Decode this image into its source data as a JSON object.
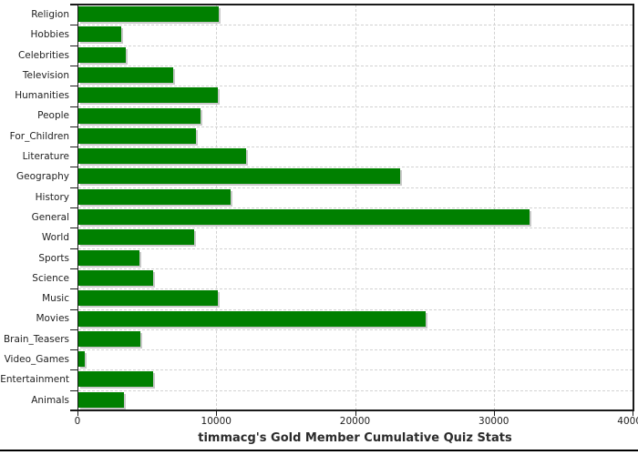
{
  "chart_data": {
    "type": "bar",
    "orientation": "horizontal",
    "title": "timmacg's Gold Member Cumulative Quiz Stats",
    "categories": [
      "Religion",
      "Hobbies",
      "Celebrities",
      "Television",
      "Humanities",
      "People",
      "For_Children",
      "Literature",
      "Geography",
      "History",
      "General",
      "World",
      "Sports",
      "Science",
      "Music",
      "Movies",
      "Brain_Teasers",
      "Video_Games",
      "Entertainment",
      "Animals"
    ],
    "values": [
      10120,
      3080,
      3390,
      6820,
      10070,
      8790,
      8500,
      12060,
      23210,
      10940,
      32500,
      8340,
      4410,
      5360,
      10040,
      25030,
      4440,
      460,
      5390,
      3300
    ],
    "xlabel": "",
    "ylabel": "",
    "xlim": [
      0,
      40000
    ],
    "x_ticks": [
      0,
      10000,
      20000,
      30000,
      40000
    ],
    "x_tick_labels": [
      "0",
      "10000",
      "20000",
      "30000",
      "40000"
    ],
    "grid": "dashed horizontal and vertical gridlines",
    "legend": "none",
    "colors": {
      "bar": "#008000",
      "bar_shadow": "#c9c9c9",
      "gridline": "#d2d2d2",
      "axis": "#1a1a1a",
      "text": "#1f1f1f",
      "title": "#2b2b2b",
      "divider": "#000000",
      "background": "#ffffff"
    }
  }
}
